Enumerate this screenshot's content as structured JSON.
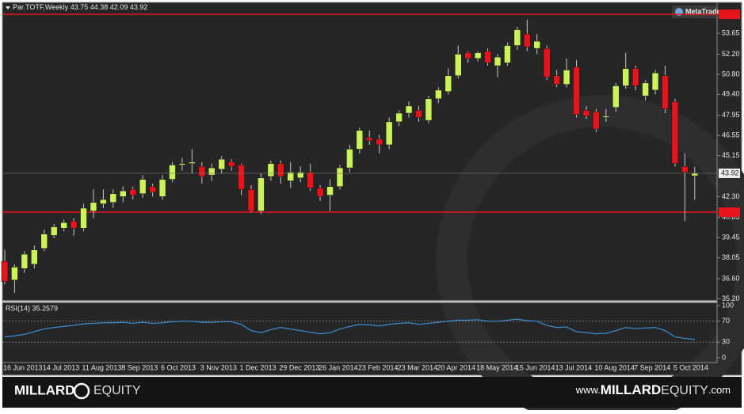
{
  "chart_data": {
    "type": "candlestick",
    "symbol": "Par.TOTF,Weekly",
    "logo": "MetaTrader",
    "bull_color": "#ccf25a",
    "bear_color": "#e8141c",
    "categories": [
      "16 Jun 2013",
      null,
      null,
      null,
      "14 Jul 2013",
      null,
      null,
      null,
      "11 Aug 2013",
      null,
      null,
      null,
      "8 Sep 2013",
      null,
      null,
      null,
      "6 Oct 2013",
      null,
      null,
      null,
      "3 Nov 2013",
      null,
      null,
      null,
      "1 Dec 2013",
      null,
      null,
      null,
      "29 Dec 2013",
      null,
      null,
      null,
      "26 Jan 2014",
      null,
      null,
      null,
      "23 Feb 2014",
      null,
      null,
      null,
      "23 Mar 2014",
      null,
      null,
      null,
      "20 Apr 2014",
      null,
      null,
      null,
      "18 May 2014",
      null,
      null,
      null,
      "15 Jun 2014",
      null,
      null,
      null,
      "13 Jul 2014",
      null,
      null,
      null,
      "10 Aug 2014",
      null,
      null,
      null,
      "7 Sep 2014",
      null,
      null,
      null,
      "5 Oct 2014",
      null,
      null
    ],
    "open": [
      37.8,
      36.5,
      37.3,
      37.6,
      38.7,
      39.6,
      40.1,
      40.6,
      40.1,
      41.3,
      41.8,
      41.9,
      42.3,
      42.8,
      42.5,
      43.0,
      42.3,
      43.5,
      44.5,
      44.6,
      44.4,
      43.8,
      44.2,
      44.7,
      44.5,
      42.8,
      41.3,
      43.7,
      44.6,
      43.4,
      43.6,
      44.0,
      42.9,
      42.4,
      43.0,
      44.3,
      45.6,
      46.4,
      46.3,
      45.9,
      47.5,
      48.1,
      48.3,
      47.6,
      49.1,
      49.6,
      50.7,
      52.3,
      51.9,
      52.4,
      51.4,
      51.6,
      52.8,
      53.6,
      52.6,
      52.6,
      50.7,
      50.1,
      51.3,
      48.3,
      48.2,
      47.8,
      48.5,
      50.0,
      51.2,
      49.3,
      49.7,
      50.7,
      48.9,
      44.4,
      43.75
    ],
    "high": [
      38.6,
      37.6,
      38.5,
      38.9,
      40.0,
      40.4,
      40.7,
      40.8,
      41.8,
      42.8,
      42.8,
      42.8,
      43.0,
      43.0,
      43.8,
      43.2,
      43.8,
      44.7,
      45.0,
      45.6,
      44.7,
      44.6,
      45.1,
      44.9,
      44.6,
      43.1,
      43.9,
      44.8,
      44.8,
      44.7,
      44.4,
      44.6,
      43.1,
      43.5,
      44.5,
      45.9,
      47.1,
      46.9,
      46.6,
      47.8,
      48.3,
      48.9,
      48.6,
      49.3,
      49.9,
      51.2,
      52.8,
      52.4,
      52.4,
      52.6,
      52.2,
      53.0,
      54.1,
      54.6,
      53.6,
      52.8,
      51.1,
      51.9,
      51.8,
      48.6,
      48.4,
      48.4,
      50.2,
      52.3,
      51.4,
      50.4,
      51.1,
      51.4,
      49.1,
      45.3,
      44.38
    ],
    "low": [
      36.2,
      35.6,
      37.0,
      37.3,
      38.5,
      39.4,
      39.9,
      39.6,
      39.9,
      40.8,
      41.5,
      41.5,
      41.9,
      42.1,
      42.2,
      42.3,
      42.1,
      43.3,
      44.1,
      43.9,
      43.2,
      43.4,
      43.9,
      44.1,
      42.4,
      41.2,
      41.1,
      43.4,
      43.2,
      42.9,
      43.3,
      42.7,
      42.0,
      41.3,
      42.8,
      44.0,
      45.3,
      45.9,
      45.3,
      45.6,
      47.2,
      47.8,
      47.5,
      47.4,
      48.8,
      49.4,
      50.5,
      51.6,
      51.7,
      51.4,
      50.6,
      51.4,
      52.5,
      52.4,
      52.2,
      50.4,
      49.9,
      49.9,
      47.8,
      47.7,
      46.8,
      47.5,
      48.2,
      49.8,
      49.7,
      49.0,
      49.4,
      48.1,
      44.4,
      40.6,
      42.09
    ],
    "close": [
      36.4,
      37.4,
      38.3,
      38.6,
      39.7,
      40.2,
      40.5,
      40.1,
      41.5,
      41.9,
      42.1,
      42.5,
      42.7,
      42.4,
      43.5,
      42.6,
      43.5,
      44.5,
      44.6,
      44.7,
      43.7,
      44.3,
      44.9,
      44.4,
      42.8,
      41.3,
      43.6,
      44.6,
      43.7,
      44.0,
      44.0,
      42.9,
      42.3,
      43.0,
      44.3,
      45.6,
      46.9,
      46.2,
      45.9,
      47.5,
      48.1,
      48.6,
      47.8,
      49.1,
      49.7,
      50.7,
      52.2,
      51.9,
      52.3,
      51.6,
      52.0,
      52.8,
      53.9,
      52.7,
      53.1,
      50.6,
      50.1,
      51.1,
      48.0,
      47.9,
      47.0,
      47.9,
      50.0,
      51.2,
      50.0,
      50.2,
      50.9,
      48.4,
      44.6,
      44.0,
      43.92
    ],
    "ylim": [
      35.06,
      55.14
    ],
    "yticks": [
      53.65,
      {
        "value": 52.2,
        "label": "52.20"
      },
      {
        "value": 50.8,
        "label": "50.80"
      },
      {
        "value": 49.4,
        "label": "49.40"
      },
      47.95,
      46.55,
      45.15,
      {
        "value": 42.3,
        "label": "42.30"
      },
      40.85,
      39.45,
      38.05,
      {
        "value": 36.6,
        "label": "36.60"
      },
      {
        "value": 35.2,
        "label": "35.20"
      }
    ],
    "hlines": [
      54.97,
      41.22
    ],
    "hline_color": "#e8141c",
    "rsi": {
      "label": "RSI(14) 35.2579",
      "color": "#3b8fd9",
      "values": [
        40,
        42,
        45,
        50,
        55,
        58,
        60,
        62,
        65,
        66,
        67,
        67,
        68,
        66,
        68,
        66,
        67,
        69,
        70,
        70,
        68,
        68,
        69,
        69,
        64,
        52,
        48,
        54,
        58,
        55,
        52,
        49,
        46,
        48,
        55,
        60,
        64,
        63,
        61,
        64,
        66,
        67,
        64,
        66,
        68,
        70,
        72,
        72,
        73,
        70,
        70,
        72,
        74,
        71,
        70,
        62,
        58,
        59,
        50,
        48,
        46,
        47,
        52,
        58,
        56,
        57,
        58,
        52,
        40,
        37,
        35.2579
      ],
      "ylim": [
        0,
        100
      ],
      "yticks": [
        100,
        70,
        30,
        0
      ],
      "levels": [
        70,
        30
      ]
    }
  },
  "footer": {
    "left_brand": "MILLARD",
    "left_brand2": "EQUITY",
    "site_prefix": "www.",
    "site_brand": "MILLARD",
    "site_brand2": "EQUITY",
    "site_suffix": ".com"
  }
}
